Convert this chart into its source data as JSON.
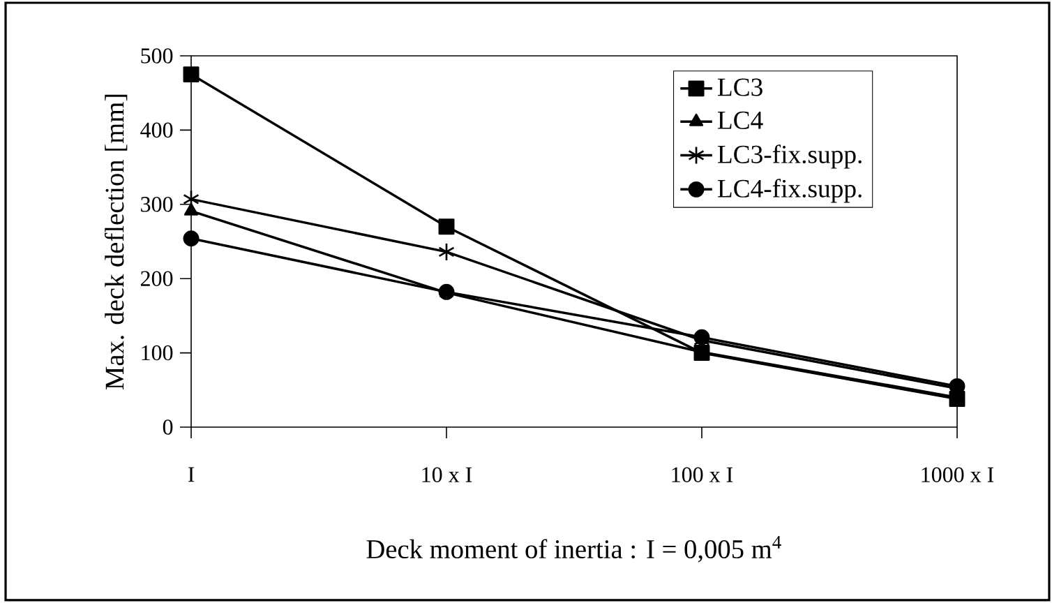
{
  "chart_data": {
    "type": "line",
    "xlabel": "Deck moment of inertia : I = 0,005 m$^{4}$",
    "ylabel": "Max. deck deflection [mm]",
    "categories": [
      "I",
      "10 x I",
      "100 x I",
      "1000 x I"
    ],
    "series": [
      {
        "name": "LC3",
        "color": "#000000",
        "marker": "square",
        "values": [
          475,
          270,
          100,
          38
        ]
      },
      {
        "name": "LC4",
        "color": "#000000",
        "marker": "triangle",
        "values": [
          291,
          181,
          101,
          40
        ]
      },
      {
        "name": "LC3-fix.supp.",
        "color": "#000000",
        "marker": "cross",
        "values": [
          307,
          236,
          117,
          52
        ]
      },
      {
        "name": "LC4-fix.supp.",
        "color": "#000000",
        "marker": "circle",
        "values": [
          254,
          182,
          121,
          55
        ]
      }
    ],
    "ylim": [
      0,
      500
    ],
    "yticks": [
      0,
      100,
      200,
      300,
      400,
      500
    ],
    "grid": false,
    "legend": "top right",
    "line_style": "solid"
  }
}
